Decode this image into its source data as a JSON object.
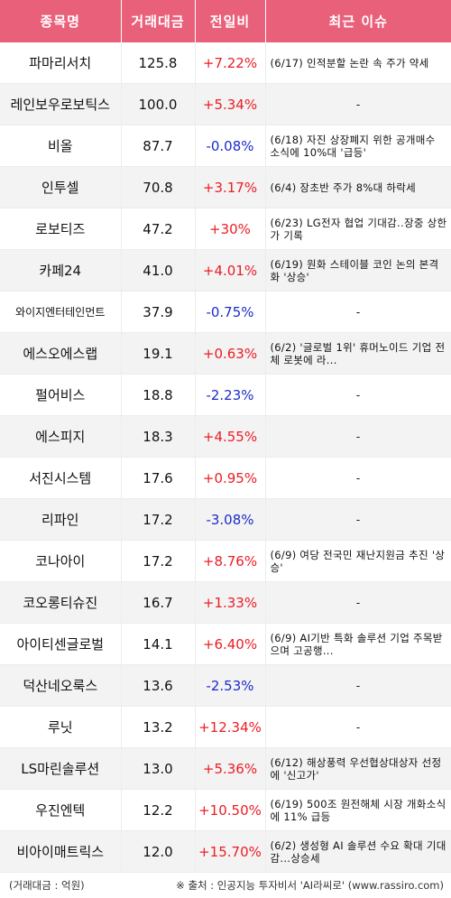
{
  "header": {
    "col_name": "종목명",
    "col_amount": "거래대금",
    "col_change": "전일비",
    "col_issue": "최근 이슈"
  },
  "rows": [
    {
      "name": "파마리서치",
      "amount": "125.8",
      "change": "+7.22%",
      "dir": "up",
      "issue": "(6/17) 인적분할 논란 속 주가 약세"
    },
    {
      "name": "레인보우로보틱스",
      "amount": "100.0",
      "change": "+5.34%",
      "dir": "up",
      "issue": "-"
    },
    {
      "name": "비올",
      "amount": "87.7",
      "change": "-0.08%",
      "dir": "down",
      "issue": "(6/18) 자진 상장폐지 위한 공개매수 소식에 10%대 '급등'"
    },
    {
      "name": "인투셀",
      "amount": "70.8",
      "change": "+3.17%",
      "dir": "up",
      "issue": "(6/4) 장초반 주가 8%대 하락세"
    },
    {
      "name": "로보티즈",
      "amount": "47.2",
      "change": "+30%",
      "dir": "up",
      "issue": "(6/23) LG전자 협업 기대감..장중 상한가 기록"
    },
    {
      "name": "카페24",
      "amount": "41.0",
      "change": "+4.01%",
      "dir": "up",
      "issue": "(6/19) 원화 스테이블 코인 논의 본격화 '상승'"
    },
    {
      "name": "와이지엔터테인먼트",
      "amount": "37.9",
      "change": "-0.75%",
      "dir": "down",
      "issue": "-"
    },
    {
      "name": "에스오에스랩",
      "amount": "19.1",
      "change": "+0.63%",
      "dir": "up",
      "issue": "(6/2) '글로벌 1위' 휴머노이드 기업 전체 로봇에 라..."
    },
    {
      "name": "펄어비스",
      "amount": "18.8",
      "change": "-2.23%",
      "dir": "down",
      "issue": "-"
    },
    {
      "name": "에스피지",
      "amount": "18.3",
      "change": "+4.55%",
      "dir": "up",
      "issue": "-"
    },
    {
      "name": "서진시스템",
      "amount": "17.6",
      "change": "+0.95%",
      "dir": "up",
      "issue": "-"
    },
    {
      "name": "리파인",
      "amount": "17.2",
      "change": "-3.08%",
      "dir": "down",
      "issue": "-"
    },
    {
      "name": "코나아이",
      "amount": "17.2",
      "change": "+8.76%",
      "dir": "up",
      "issue": "(6/9) 여당 전국민 재난지원금 추진 '상승'"
    },
    {
      "name": "코오롱티슈진",
      "amount": "16.7",
      "change": "+1.33%",
      "dir": "up",
      "issue": "-"
    },
    {
      "name": "아이티센글로벌",
      "amount": "14.1",
      "change": "+6.40%",
      "dir": "up",
      "issue": "(6/9) AI기반 특화 솔루션 기업 주목받으며 고공행..."
    },
    {
      "name": "덕산네오룩스",
      "amount": "13.6",
      "change": "-2.53%",
      "dir": "down",
      "issue": "-"
    },
    {
      "name": "루닛",
      "amount": "13.2",
      "change": "+12.34%",
      "dir": "up",
      "issue": "-"
    },
    {
      "name": "LS마린솔루션",
      "amount": "13.0",
      "change": "+5.36%",
      "dir": "up",
      "issue": "(6/12) 해상풍력 우선협상대상자 선정에 '신고가'"
    },
    {
      "name": "우진엔텍",
      "amount": "12.2",
      "change": "+10.50%",
      "dir": "up",
      "issue": "(6/19) 500조 원전해체 시장 개화소식에 11% 급등"
    },
    {
      "name": "비아이매트릭스",
      "amount": "12.0",
      "change": "+15.70%",
      "dir": "up",
      "issue": "(6/2) 생성형 AI 솔루션 수요 확대 기대감...상승세"
    }
  ],
  "footer": {
    "unit_note": "(거래대금 : 억원)",
    "source_note": "※ 출처 : 인공지능 투자비서 'AI라씨로' (www.rassiro.com)"
  },
  "colors": {
    "header_bg": "#e9607a",
    "up": "#ec1c24",
    "down": "#1c2cc8"
  }
}
